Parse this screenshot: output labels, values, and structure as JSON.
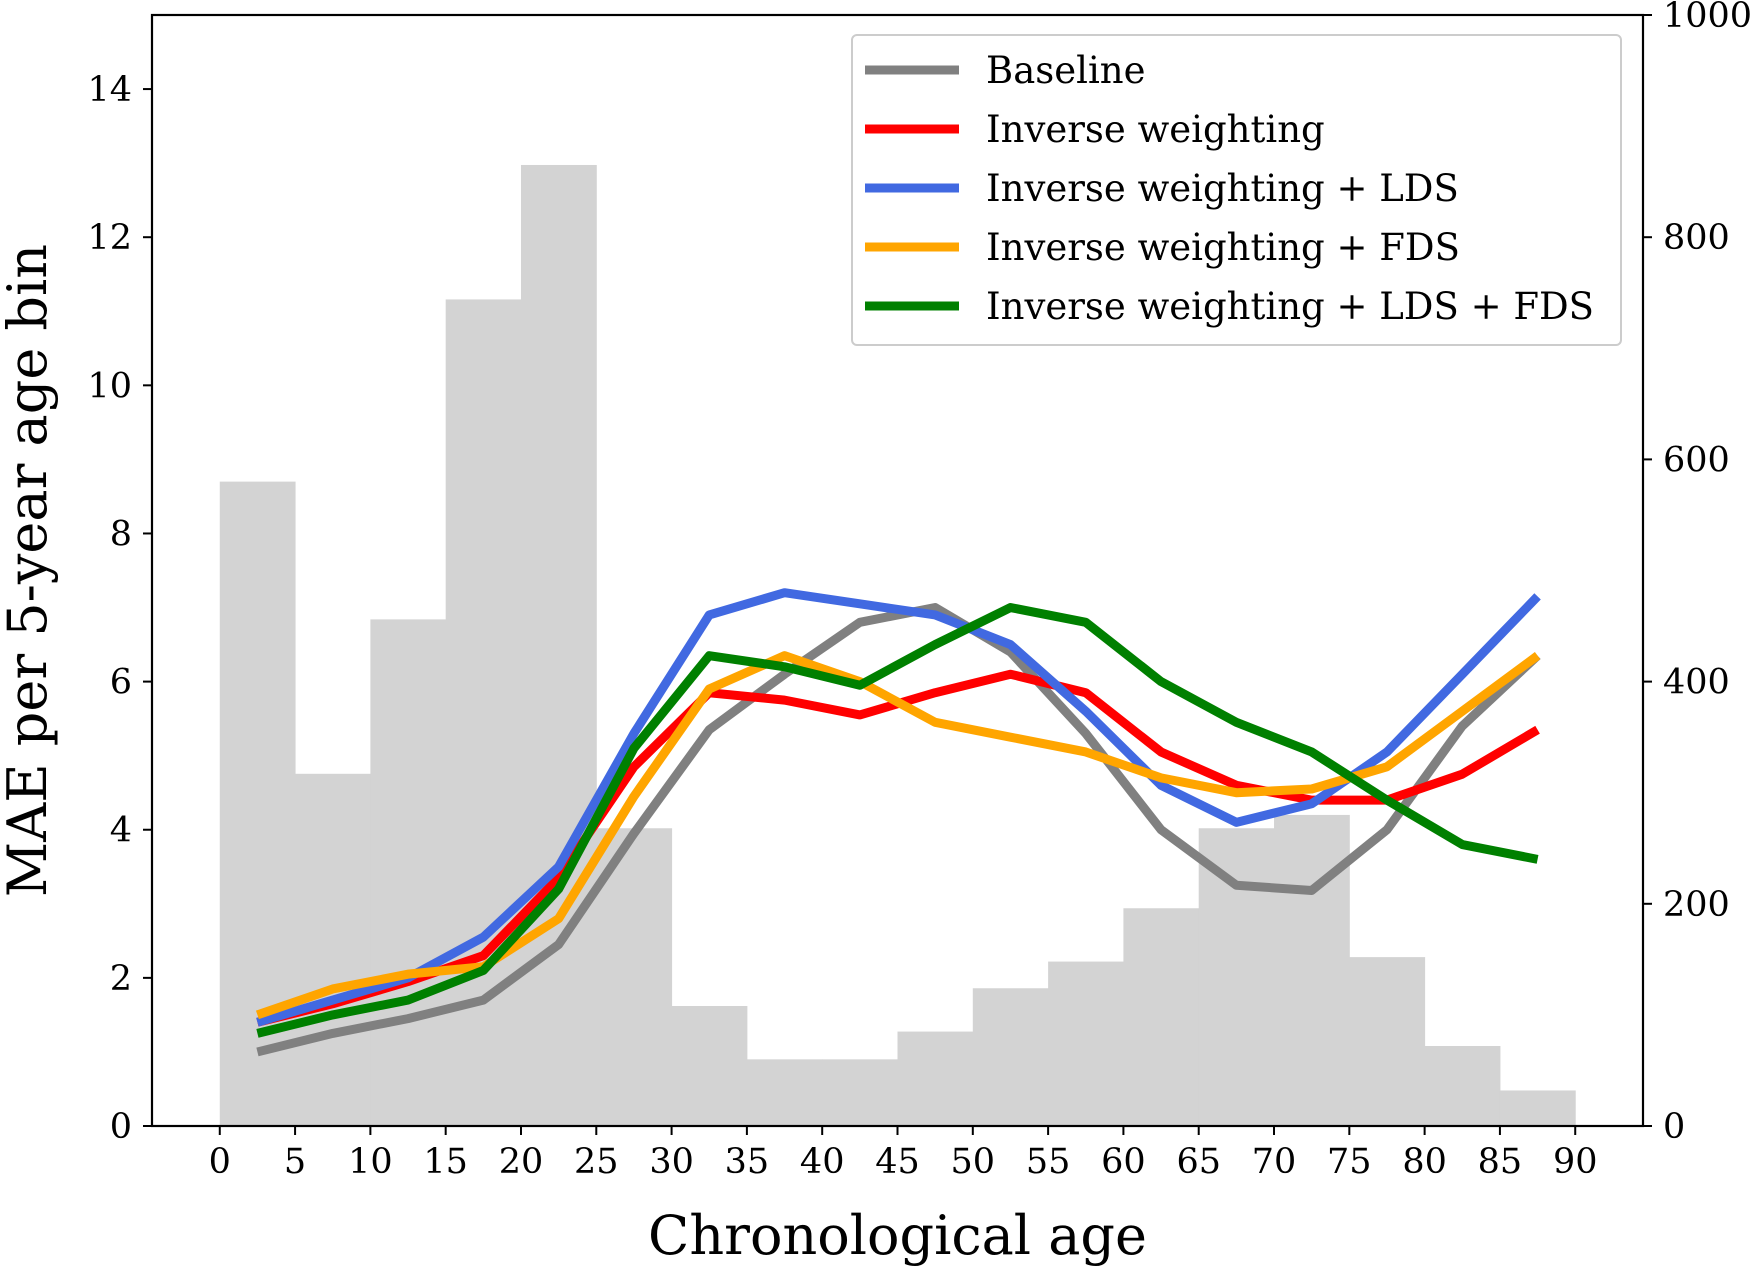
{
  "chart_data": {
    "type": "line",
    "xlabel": "Chronological age",
    "ylabel": "MAE per 5-year age bin",
    "xlim": [
      -4.5,
      94.5
    ],
    "ylim": [
      0,
      15
    ],
    "y2lim": [
      0,
      1000
    ],
    "xticks": [
      0,
      5,
      10,
      15,
      20,
      25,
      30,
      35,
      40,
      45,
      50,
      55,
      60,
      65,
      70,
      75,
      80,
      85,
      90
    ],
    "yticks": [
      0,
      2,
      4,
      6,
      8,
      10,
      12,
      14
    ],
    "y2ticks": [
      0,
      200,
      400,
      600,
      800,
      1000
    ],
    "grid": false,
    "legend_position": "top-right",
    "histogram": {
      "color": "#d3d3d3",
      "bin_edges": [
        0,
        5,
        10,
        15,
        20,
        25,
        30,
        35,
        40,
        45,
        50,
        55,
        60,
        65,
        70,
        75,
        80,
        85,
        90
      ],
      "counts": [
        580,
        317,
        456,
        744,
        865,
        268,
        108,
        60,
        60,
        85,
        124,
        148,
        196,
        268,
        280,
        152,
        72,
        32
      ]
    },
    "x": [
      2.5,
      7.5,
      12.5,
      17.5,
      22.5,
      27.5,
      32.5,
      37.5,
      42.5,
      47.5,
      52.5,
      57.5,
      62.5,
      67.5,
      72.5,
      77.5,
      82.5,
      87.5
    ],
    "series": [
      {
        "name": "Baseline",
        "color": "#808080",
        "values": [
          1.0,
          1.25,
          1.45,
          1.7,
          2.45,
          3.95,
          5.35,
          6.1,
          6.8,
          7.0,
          6.4,
          5.3,
          4.0,
          3.25,
          3.18,
          4.0,
          5.4,
          6.35
        ]
      },
      {
        "name": "Inverse weighting",
        "color": "#ff0000",
        "values": [
          1.4,
          1.65,
          1.95,
          2.3,
          3.35,
          4.85,
          5.85,
          5.75,
          5.55,
          5.85,
          6.1,
          5.85,
          5.05,
          4.6,
          4.4,
          4.4,
          4.75,
          5.35
        ]
      },
      {
        "name": "Inverse weighting + LDS",
        "color": "#4169e1",
        "values": [
          1.4,
          1.7,
          2.0,
          2.55,
          3.5,
          5.3,
          6.9,
          7.2,
          7.05,
          6.9,
          6.5,
          5.6,
          4.6,
          4.1,
          4.35,
          5.05,
          6.1,
          7.15
        ]
      },
      {
        "name": "Inverse weighting + FDS",
        "color": "#ffa500",
        "values": [
          1.5,
          1.85,
          2.05,
          2.15,
          2.8,
          4.45,
          5.9,
          6.35,
          6.0,
          5.45,
          5.25,
          5.05,
          4.7,
          4.5,
          4.55,
          4.85,
          5.6,
          6.35
        ]
      },
      {
        "name": "Inverse weighting + LDS + FDS",
        "color": "#008000",
        "values": [
          1.25,
          1.5,
          1.7,
          2.1,
          3.2,
          5.1,
          6.35,
          6.2,
          5.95,
          6.5,
          7.0,
          6.8,
          6.0,
          5.45,
          5.05,
          4.4,
          3.8,
          3.6
        ]
      }
    ]
  }
}
